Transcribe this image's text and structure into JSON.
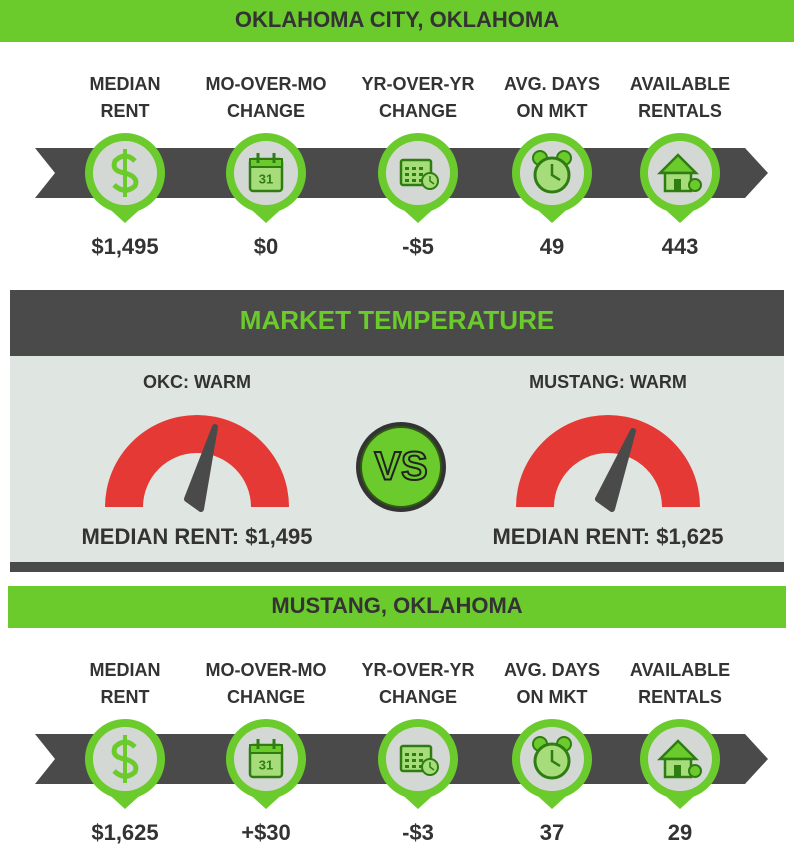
{
  "sections": [
    {
      "title": "OKLAHOMA CITY, OKLAHOMA",
      "metrics": [
        {
          "label": [
            "MEDIAN",
            "RENT"
          ],
          "value": "$1,495"
        },
        {
          "label": [
            "MO-OVER-MO",
            "CHANGE"
          ],
          "value": "$0"
        },
        {
          "label": [
            "YR-OVER-YR",
            "CHANGE"
          ],
          "value": "-$5"
        },
        {
          "label": [
            "AVG. DAYS",
            "ON MKT"
          ],
          "value": "49"
        },
        {
          "label": [
            "AVAILABLE",
            "RENTALS"
          ],
          "value": "443"
        }
      ]
    },
    {
      "title": "MUSTANG, OKLAHOMA",
      "metrics": [
        {
          "label": [
            "MEDIAN",
            "RENT"
          ],
          "value": "$1,625"
        },
        {
          "label": [
            "MO-OVER-MO",
            "CHANGE"
          ],
          "value": "+$30"
        },
        {
          "label": [
            "YR-OVER-YR",
            "CHANGE"
          ],
          "value": "-$3"
        },
        {
          "label": [
            "AVG. DAYS",
            "ON MKT"
          ],
          "value": "37"
        },
        {
          "label": [
            "AVAILABLE",
            "RENTALS"
          ],
          "value": "29"
        }
      ]
    }
  ],
  "calendar_icon_text": "31",
  "temperature": {
    "title": "MARKET TEMPERATURE",
    "vs": "VS",
    "gauges": [
      {
        "label": "OKC: WARM",
        "median": "MEDIAN RENT: $1,495"
      },
      {
        "label": "MUSTANG: WARM",
        "median": "MEDIAN RENT: $1,625"
      }
    ]
  }
}
